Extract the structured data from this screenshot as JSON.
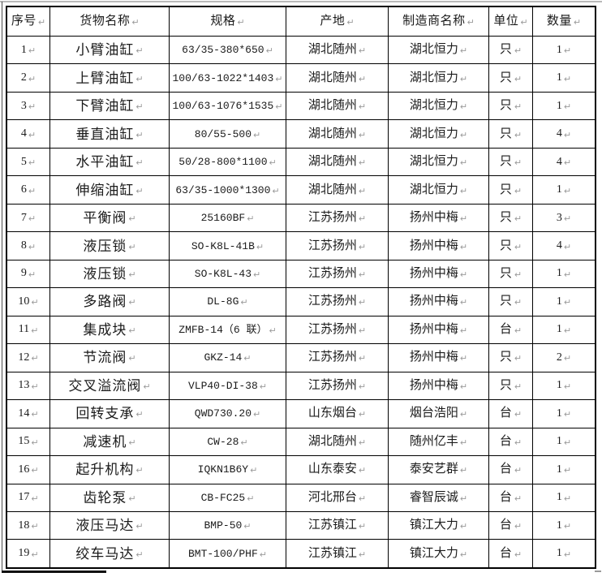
{
  "page": {
    "background": "#ffffff",
    "border_color": "#000000",
    "mark_color": "#9b9b9b",
    "paragraph_mark": "↵"
  },
  "table": {
    "headers": [
      "序号",
      "货物名称",
      "规格",
      "产地",
      "制造商名称",
      "单位",
      "数量"
    ],
    "rows": [
      {
        "no": "1",
        "name": "小臂油缸",
        "spec": "63/35-380*650",
        "origin": "湖北随州",
        "maker": "湖北恒力",
        "unit": "只",
        "qty": "1"
      },
      {
        "no": "2",
        "name": "上臂油缸",
        "spec": "100/63-1022*1403",
        "origin": "湖北随州",
        "maker": "湖北恒力",
        "unit": "只",
        "qty": "1"
      },
      {
        "no": "3",
        "name": "下臂油缸",
        "spec": "100/63-1076*1535",
        "origin": "湖北随州",
        "maker": "湖北恒力",
        "unit": "只",
        "qty": "1"
      },
      {
        "no": "4",
        "name": "垂直油缸",
        "spec": "80/55-500",
        "origin": "湖北随州",
        "maker": "湖北恒力",
        "unit": "只",
        "qty": "4"
      },
      {
        "no": "5",
        "name": "水平油缸",
        "spec": "50/28-800*1100",
        "origin": "湖北随州",
        "maker": "湖北恒力",
        "unit": "只",
        "qty": "4"
      },
      {
        "no": "6",
        "name": "伸缩油缸",
        "spec": "63/35-1000*1300",
        "origin": "湖北随州",
        "maker": "湖北恒力",
        "unit": "只",
        "qty": "1"
      },
      {
        "no": "7",
        "name": "平衡阀",
        "spec": "25160BF",
        "origin": "江苏扬州",
        "maker": "扬州中梅",
        "unit": "只",
        "qty": "3"
      },
      {
        "no": "8",
        "name": "液压锁",
        "spec": "SO-K8L-41B",
        "origin": "江苏扬州",
        "maker": "扬州中梅",
        "unit": "只",
        "qty": "4"
      },
      {
        "no": "9",
        "name": "液压锁",
        "spec": "SO-K8L-43",
        "origin": "江苏扬州",
        "maker": "扬州中梅",
        "unit": "只",
        "qty": "1"
      },
      {
        "no": "10",
        "name": "多路阀",
        "spec": "DL-8G",
        "origin": "江苏扬州",
        "maker": "扬州中梅",
        "unit": "只",
        "qty": "1"
      },
      {
        "no": "11",
        "name": "集成块",
        "spec": "ZMFB-14（6 联）",
        "origin": "江苏扬州",
        "maker": "扬州中梅",
        "unit": "台",
        "qty": "1"
      },
      {
        "no": "12",
        "name": "节流阀",
        "spec": "GKZ-14",
        "origin": "江苏扬州",
        "maker": "扬州中梅",
        "unit": "只",
        "qty": "2"
      },
      {
        "no": "13",
        "name": "交叉溢流阀",
        "spec": "VLP40-DI-38",
        "origin": "江苏扬州",
        "maker": "扬州中梅",
        "unit": "只",
        "qty": "1"
      },
      {
        "no": "14",
        "name": "回转支承",
        "spec": "QWD730.20",
        "origin": "山东烟台",
        "maker": "烟台浩阳",
        "unit": "台",
        "qty": "1"
      },
      {
        "no": "15",
        "name": "减速机",
        "spec": "CW-28",
        "origin": "湖北随州",
        "maker": "随州亿丰",
        "unit": "台",
        "qty": "1"
      },
      {
        "no": "16",
        "name": "起升机构",
        "spec": "IQKN1B6Y",
        "origin": "山东泰安",
        "maker": "泰安艺群",
        "unit": "台",
        "qty": "1"
      },
      {
        "no": "17",
        "name": "齿轮泵",
        "spec": "CB-FC25",
        "origin": "河北邢台",
        "maker": "睿智辰诚",
        "unit": "台",
        "qty": "1"
      },
      {
        "no": "18",
        "name": "液压马达",
        "spec": "BMP-50",
        "origin": "江苏镇江",
        "maker": "镇江大力",
        "unit": "台",
        "qty": "1"
      },
      {
        "no": "19",
        "name": "绞车马达",
        "spec": "BMT-100/PHF",
        "origin": "江苏镇江",
        "maker": "镇江大力",
        "unit": "台",
        "qty": "1"
      }
    ]
  }
}
